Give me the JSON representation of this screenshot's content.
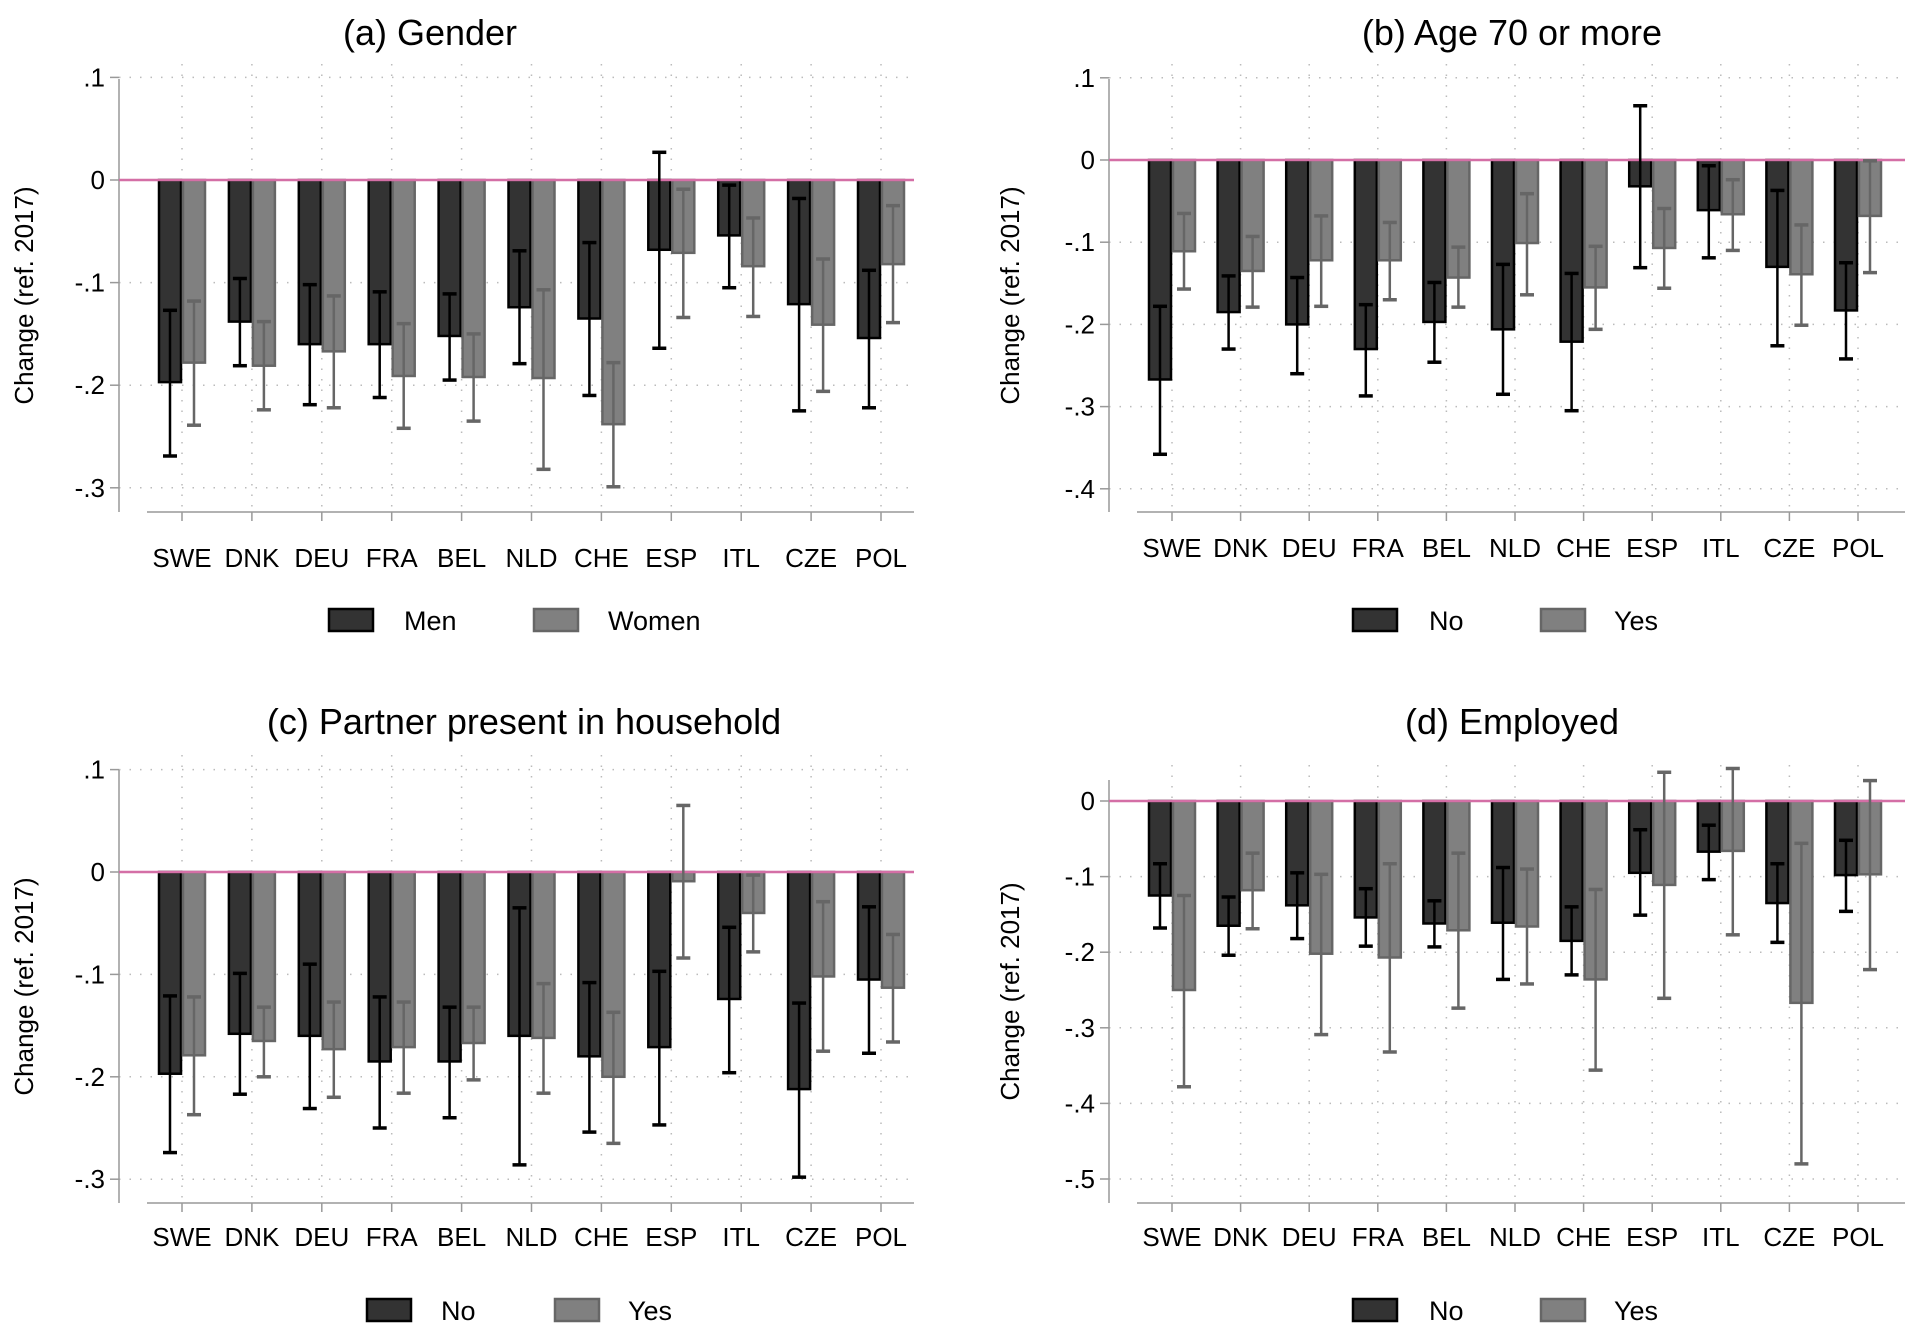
{
  "colors": {
    "group1_fill": "#333333",
    "group1_line": "#000000",
    "group2_fill": "#808080",
    "group2_line": "#666666",
    "zero_line": "#d46fa6",
    "grid": "#bbbbbb",
    "axis": "#999999"
  },
  "chart_data": [
    {
      "type": "bar",
      "title": "(a) Gender",
      "ylabel": "Change (ref. 2017)",
      "xlabel": "",
      "categories": [
        "SWE",
        "DNK",
        "DEU",
        "FRA",
        "BEL",
        "NLD",
        "CHE",
        "ESP",
        "ITL",
        "CZE",
        "POL"
      ],
      "ylim": [
        -0.3,
        0.1
      ],
      "yticks": [
        {
          "value": 0.1,
          "label": ".1"
        },
        {
          "value": 0,
          "label": "0"
        },
        {
          "value": -0.1,
          "label": "-.1"
        },
        {
          "value": -0.2,
          "label": "-.2"
        },
        {
          "value": -0.3,
          "label": "-.3"
        }
      ],
      "grid": true,
      "legend": "bottom",
      "series": [
        {
          "name": "Men",
          "values": [
            -0.197,
            -0.138,
            -0.16,
            -0.16,
            -0.152,
            -0.124,
            -0.135,
            -0.068,
            -0.054,
            -0.121,
            -0.154
          ],
          "ci_high": [
            -0.127,
            -0.096,
            -0.102,
            -0.109,
            -0.111,
            -0.069,
            -0.061,
            0.027,
            -0.005,
            -0.018,
            -0.088
          ],
          "ci_low": [
            -0.269,
            -0.181,
            -0.219,
            -0.212,
            -0.195,
            -0.179,
            -0.21,
            -0.164,
            -0.105,
            -0.225,
            -0.222
          ]
        },
        {
          "name": "Women",
          "values": [
            -0.178,
            -0.181,
            -0.167,
            -0.191,
            -0.192,
            -0.193,
            -0.238,
            -0.071,
            -0.084,
            -0.141,
            -0.082
          ],
          "ci_high": [
            -0.118,
            -0.138,
            -0.113,
            -0.14,
            -0.15,
            -0.107,
            -0.178,
            -0.009,
            -0.037,
            -0.077,
            -0.025
          ],
          "ci_low": [
            -0.239,
            -0.224,
            -0.222,
            -0.242,
            -0.235,
            -0.282,
            -0.299,
            -0.134,
            -0.133,
            -0.206,
            -0.139
          ]
        }
      ]
    },
    {
      "type": "bar",
      "title": "(b) Age 70 or more",
      "ylabel": "Change (ref. 2017)",
      "xlabel": "",
      "categories": [
        "SWE",
        "DNK",
        "DEU",
        "FRA",
        "BEL",
        "NLD",
        "CHE",
        "ESP",
        "ITL",
        "CZE",
        "POL"
      ],
      "ylim": [
        -0.4,
        0.1
      ],
      "yticks": [
        {
          "value": 0.1,
          "label": ".1"
        },
        {
          "value": 0,
          "label": "0"
        },
        {
          "value": -0.1,
          "label": "-.1"
        },
        {
          "value": -0.2,
          "label": "-.2"
        },
        {
          "value": -0.3,
          "label": "-.3"
        },
        {
          "value": -0.4,
          "label": "-.4"
        }
      ],
      "grid": true,
      "legend": "bottom",
      "series": [
        {
          "name": "No",
          "values": [
            -0.267,
            -0.185,
            -0.2,
            -0.23,
            -0.197,
            -0.206,
            -0.221,
            -0.032,
            -0.061,
            -0.13,
            -0.183
          ],
          "ci_high": [
            -0.178,
            -0.141,
            -0.143,
            -0.176,
            -0.149,
            -0.127,
            -0.138,
            0.066,
            -0.007,
            -0.037,
            -0.125
          ],
          "ci_low": [
            -0.358,
            -0.23,
            -0.26,
            -0.287,
            -0.246,
            -0.285,
            -0.305,
            -0.131,
            -0.119,
            -0.226,
            -0.242
          ]
        },
        {
          "name": "Yes",
          "values": [
            -0.111,
            -0.135,
            -0.122,
            -0.122,
            -0.143,
            -0.101,
            -0.155,
            -0.107,
            -0.066,
            -0.139,
            -0.068
          ],
          "ci_high": [
            -0.065,
            -0.093,
            -0.068,
            -0.076,
            -0.106,
            -0.041,
            -0.105,
            -0.059,
            -0.024,
            -0.079,
            -0.001
          ],
          "ci_low": [
            -0.157,
            -0.179,
            -0.178,
            -0.17,
            -0.179,
            -0.164,
            -0.206,
            -0.156,
            -0.11,
            -0.201,
            -0.137
          ]
        }
      ]
    },
    {
      "type": "bar",
      "title": "(c) Partner present in household",
      "ylabel": "Change (ref. 2017)",
      "xlabel": "",
      "categories": [
        "SWE",
        "DNK",
        "DEU",
        "FRA",
        "BEL",
        "NLD",
        "CHE",
        "ESP",
        "ITL",
        "CZE",
        "POL"
      ],
      "ylim": [
        -0.3,
        0.1
      ],
      "yticks": [
        {
          "value": 0.1,
          "label": ".1"
        },
        {
          "value": 0,
          "label": "0"
        },
        {
          "value": -0.1,
          "label": "-.1"
        },
        {
          "value": -0.2,
          "label": "-.2"
        },
        {
          "value": -0.3,
          "label": "-.3"
        }
      ],
      "grid": true,
      "legend": "bottom",
      "series": [
        {
          "name": "No",
          "values": [
            -0.197,
            -0.158,
            -0.16,
            -0.185,
            -0.185,
            -0.16,
            -0.18,
            -0.171,
            -0.124,
            -0.212,
            -0.105
          ],
          "ci_high": [
            -0.121,
            -0.099,
            -0.09,
            -0.122,
            -0.132,
            -0.035,
            -0.108,
            -0.097,
            -0.054,
            -0.128,
            -0.034
          ],
          "ci_low": [
            -0.274,
            -0.217,
            -0.231,
            -0.25,
            -0.24,
            -0.286,
            -0.254,
            -0.247,
            -0.196,
            -0.298,
            -0.177
          ]
        },
        {
          "name": "Yes",
          "values": [
            -0.179,
            -0.165,
            -0.173,
            -0.171,
            -0.167,
            -0.162,
            -0.2,
            -0.009,
            -0.04,
            -0.102,
            -0.113
          ],
          "ci_high": [
            -0.122,
            -0.132,
            -0.127,
            -0.127,
            -0.132,
            -0.109,
            -0.137,
            0.065,
            -0.003,
            -0.029,
            -0.061
          ],
          "ci_low": [
            -0.237,
            -0.2,
            -0.22,
            -0.216,
            -0.203,
            -0.216,
            -0.265,
            -0.084,
            -0.078,
            -0.175,
            -0.166
          ]
        }
      ]
    },
    {
      "type": "bar",
      "title": "(d) Employed",
      "ylabel": "Change (ref. 2017)",
      "xlabel": "",
      "categories": [
        "SWE",
        "DNK",
        "DEU",
        "FRA",
        "BEL",
        "NLD",
        "CHE",
        "ESP",
        "ITL",
        "CZE",
        "POL"
      ],
      "ylim": [
        -0.5,
        0.03
      ],
      "yticks": [
        {
          "value": 0,
          "label": "0"
        },
        {
          "value": -0.1,
          "label": "-.1"
        },
        {
          "value": -0.2,
          "label": "-.2"
        },
        {
          "value": -0.3,
          "label": "-.3"
        },
        {
          "value": -0.4,
          "label": "-.4"
        },
        {
          "value": -0.5,
          "label": "-.5"
        }
      ],
      "grid": true,
      "legend": "bottom",
      "series": [
        {
          "name": "No",
          "values": [
            -0.125,
            -0.165,
            -0.138,
            -0.154,
            -0.162,
            -0.161,
            -0.185,
            -0.095,
            -0.067,
            -0.135,
            -0.098
          ],
          "ci_high": [
            -0.083,
            -0.127,
            -0.095,
            -0.116,
            -0.132,
            -0.088,
            -0.14,
            -0.038,
            -0.032,
            -0.083,
            -0.052
          ],
          "ci_low": [
            -0.168,
            -0.204,
            -0.182,
            -0.192,
            -0.193,
            -0.236,
            -0.23,
            -0.151,
            -0.104,
            -0.187,
            -0.146
          ]
        },
        {
          "name": "Yes",
          "values": [
            -0.25,
            -0.118,
            -0.202,
            -0.207,
            -0.171,
            -0.166,
            -0.236,
            -0.111,
            -0.066,
            -0.267,
            -0.097
          ],
          "ci_high": [
            -0.125,
            -0.069,
            -0.097,
            -0.083,
            -0.069,
            -0.09,
            -0.117,
            0.038,
            0.043,
            -0.056,
            0.027
          ],
          "ci_low": [
            -0.378,
            -0.169,
            -0.309,
            -0.332,
            -0.274,
            -0.242,
            -0.356,
            -0.261,
            -0.177,
            -0.48,
            -0.223
          ]
        }
      ]
    }
  ]
}
